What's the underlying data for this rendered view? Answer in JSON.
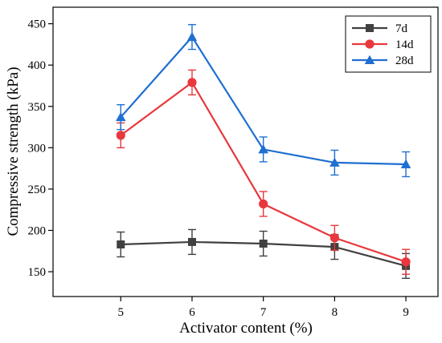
{
  "chart_data": {
    "type": "line",
    "title": "",
    "xlabel": "Activator content (%)",
    "ylabel": "Compressive strength (kPa)",
    "x": [
      5,
      6,
      7,
      8,
      9
    ],
    "xlim": [
      4.05,
      9.45
    ],
    "ylim": [
      120,
      470
    ],
    "xticks": [
      5,
      6,
      7,
      8,
      9
    ],
    "yticks": [
      150,
      200,
      250,
      300,
      350,
      400,
      450
    ],
    "grid": false,
    "legend_position": "top-right",
    "error_bars": true,
    "series": [
      {
        "name": "7d",
        "marker": "square",
        "color": "#404040",
        "values": [
          183,
          186,
          184,
          180,
          157
        ],
        "errors": [
          15,
          15,
          15,
          15,
          15
        ]
      },
      {
        "name": "14d",
        "marker": "circle",
        "color": "#e8383d",
        "values": [
          315,
          379,
          232,
          191,
          162
        ],
        "errors": [
          15,
          15,
          15,
          15,
          15
        ]
      },
      {
        "name": "28d",
        "marker": "triangle",
        "color": "#1f6fd1",
        "values": [
          337,
          434,
          298,
          282,
          280
        ],
        "errors": [
          15,
          15,
          15,
          15,
          15
        ]
      }
    ]
  }
}
